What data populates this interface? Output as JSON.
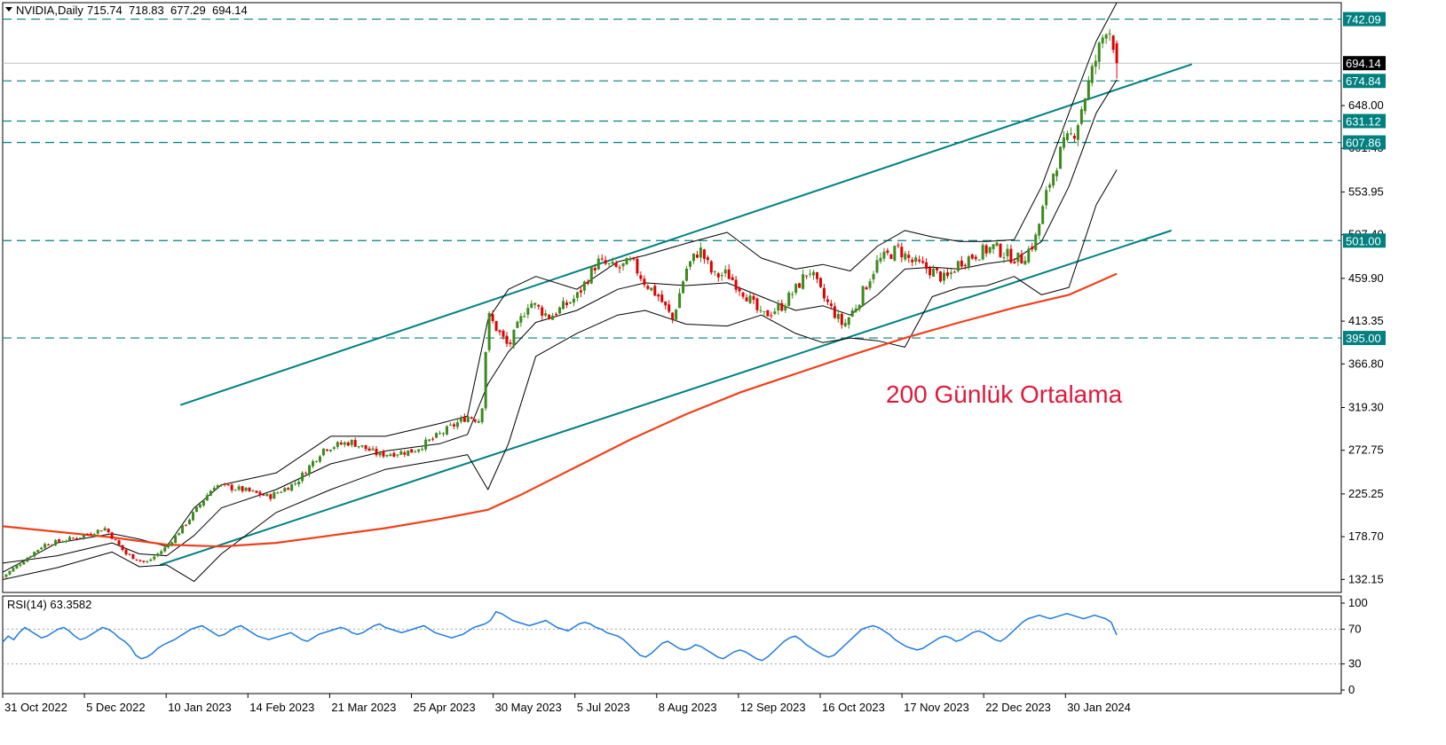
{
  "header": {
    "symbol_line": "NVIDIA,Daily",
    "ohlc": [
      "715.74",
      "718.83",
      "677.29",
      "694.14"
    ]
  },
  "rsi_panel": {
    "label": "RSI(14) 63.3582",
    "scale": [
      "100",
      "70",
      "30",
      "0"
    ],
    "levels": [
      70,
      30
    ],
    "series": [
      55,
      62,
      58,
      66,
      72,
      68,
      64,
      60,
      62,
      66,
      70,
      72,
      68,
      62,
      58,
      60,
      64,
      68,
      72,
      70,
      66,
      60,
      56,
      50,
      40,
      36,
      38,
      42,
      48,
      52,
      55,
      58,
      62,
      66,
      70,
      72,
      74,
      70,
      66,
      62,
      64,
      68,
      72,
      74,
      70,
      66,
      62,
      60,
      58,
      60,
      62,
      64,
      66,
      62,
      58,
      56,
      60,
      64,
      66,
      68,
      70,
      72,
      70,
      66,
      64,
      66,
      70,
      74,
      76,
      72,
      70,
      68,
      66,
      68,
      70,
      72,
      74,
      70,
      66,
      64,
      62,
      60,
      62,
      64,
      68,
      72,
      74,
      76,
      80,
      90,
      88,
      84,
      80,
      78,
      76,
      74,
      76,
      78,
      80,
      76,
      72,
      70,
      68,
      72,
      76,
      78,
      76,
      72,
      70,
      66,
      64,
      62,
      58,
      52,
      46,
      40,
      38,
      42,
      48,
      54,
      56,
      52,
      48,
      46,
      48,
      52,
      50,
      46,
      42,
      38,
      36,
      40,
      44,
      46,
      44,
      40,
      36,
      34,
      38,
      44,
      50,
      56,
      60,
      62,
      58,
      52,
      48,
      44,
      40,
      38,
      40,
      46,
      52,
      58,
      64,
      70,
      72,
      74,
      72,
      68,
      64,
      58,
      54,
      50,
      48,
      46,
      48,
      52,
      56,
      60,
      62,
      60,
      56,
      58,
      62,
      66,
      68,
      66,
      62,
      58,
      56,
      60,
      66,
      72,
      78,
      82,
      84,
      86,
      84,
      82,
      84,
      86,
      88,
      86,
      84,
      82,
      84,
      86,
      84,
      82,
      78,
      63.36
    ],
    "color": "#1e7be0"
  },
  "annotation": {
    "text": "200 Günlük Ortalama",
    "color": "#e0193b"
  },
  "colors": {
    "up": "#3c8a1c",
    "down": "#e00000",
    "ma200": "#f0401a",
    "channel": "#00807f",
    "level": "#00807f",
    "bands": "#000000",
    "price_tag": "#000000"
  },
  "chart_data": {
    "type": "candlestick",
    "symbol": "NVIDIA",
    "timeframe": "Daily",
    "last": {
      "open": 715.74,
      "high": 718.83,
      "low": 677.29,
      "close": 694.14
    },
    "x_tick_labels": [
      "31 Oct 2022",
      "5 Dec 2022",
      "10 Jan 2023",
      "14 Feb 2023",
      "21 Mar 2023",
      "25 Apr 2023",
      "30 May 2023",
      "5 Jul 2023",
      "8 Aug 2023",
      "12 Sep 2023",
      "16 Oct 2023",
      "17 Nov 2023",
      "22 Dec 2023",
      "30 Jan 2024"
    ],
    "y_tick_labels": [
      "132.15",
      "178.70",
      "225.25",
      "272.75",
      "319.30",
      "366.80",
      "413.35",
      "459.90",
      "507.40",
      "553.95",
      "601.45",
      "648.00"
    ],
    "ylim": [
      118,
      760
    ],
    "price_levels": [
      {
        "value": 742.09,
        "label": "742.09"
      },
      {
        "value": 674.84,
        "label": "674.84"
      },
      {
        "value": 631.12,
        "label": "631.12"
      },
      {
        "value": 607.86,
        "label": "607.86"
      },
      {
        "value": 501.0,
        "label": "501.00"
      },
      {
        "value": 395.0,
        "label": "395.00"
      }
    ],
    "current_price": {
      "value": 694.14,
      "label": "694.14"
    },
    "channel": {
      "upper": [
        {
          "t": 0.13,
          "v": 322
        },
        {
          "t": 0.87,
          "v": 693
        }
      ],
      "lower": [
        {
          "t": 0.115,
          "v": 148
        },
        {
          "t": 0.855,
          "v": 512
        }
      ]
    },
    "close_path": [
      [
        0,
        135
      ],
      [
        0.03,
        170
      ],
      [
        0.055,
        178
      ],
      [
        0.075,
        188
      ],
      [
        0.09,
        160
      ],
      [
        0.105,
        150
      ],
      [
        0.12,
        168
      ],
      [
        0.135,
        195
      ],
      [
        0.155,
        235
      ],
      [
        0.175,
        230
      ],
      [
        0.195,
        222
      ],
      [
        0.215,
        238
      ],
      [
        0.235,
        275
      ],
      [
        0.255,
        282
      ],
      [
        0.275,
        268
      ],
      [
        0.3,
        272
      ],
      [
        0.32,
        290
      ],
      [
        0.34,
        310
      ],
      [
        0.35,
        305
      ],
      [
        0.355,
        420
      ],
      [
        0.37,
        385
      ],
      [
        0.385,
        435
      ],
      [
        0.4,
        418
      ],
      [
        0.42,
        440
      ],
      [
        0.435,
        478
      ],
      [
        0.45,
        470
      ],
      [
        0.46,
        478
      ],
      [
        0.47,
        455
      ],
      [
        0.48,
        440
      ],
      [
        0.49,
        415
      ],
      [
        0.5,
        470
      ],
      [
        0.51,
        492
      ],
      [
        0.52,
        462
      ],
      [
        0.53,
        465
      ],
      [
        0.545,
        440
      ],
      [
        0.555,
        418
      ],
      [
        0.57,
        430
      ],
      [
        0.58,
        448
      ],
      [
        0.59,
        470
      ],
      [
        0.6,
        440
      ],
      [
        0.615,
        408
      ],
      [
        0.625,
        432
      ],
      [
        0.64,
        478
      ],
      [
        0.655,
        492
      ],
      [
        0.665,
        478
      ],
      [
        0.68,
        468
      ],
      [
        0.69,
        458
      ],
      [
        0.7,
        478
      ],
      [
        0.715,
        488
      ],
      [
        0.725,
        494
      ],
      [
        0.735,
        485
      ],
      [
        0.745,
        480
      ],
      [
        0.755,
        500
      ],
      [
        0.765,
        560
      ],
      [
        0.775,
        602
      ],
      [
        0.785,
        622
      ],
      [
        0.79,
        650
      ],
      [
        0.8,
        700
      ],
      [
        0.808,
        738
      ],
      [
        0.812,
        720
      ],
      [
        0.815,
        694.14
      ]
    ],
    "bollinger": {
      "middle": [
        [
          0,
          150
        ],
        [
          0.04,
          158
        ],
        [
          0.08,
          172
        ],
        [
          0.1,
          160
        ],
        [
          0.12,
          158
        ],
        [
          0.14,
          180
        ],
        [
          0.16,
          210
        ],
        [
          0.2,
          230
        ],
        [
          0.24,
          258
        ],
        [
          0.28,
          272
        ],
        [
          0.32,
          280
        ],
        [
          0.34,
          290
        ],
        [
          0.355,
          345
        ],
        [
          0.37,
          380
        ],
        [
          0.39,
          412
        ],
        [
          0.42,
          425
        ],
        [
          0.45,
          448
        ],
        [
          0.47,
          455
        ],
        [
          0.5,
          452
        ],
        [
          0.53,
          455
        ],
        [
          0.555,
          440
        ],
        [
          0.58,
          425
        ],
        [
          0.6,
          430
        ],
        [
          0.62,
          420
        ],
        [
          0.64,
          442
        ],
        [
          0.66,
          470
        ],
        [
          0.68,
          472
        ],
        [
          0.7,
          470
        ],
        [
          0.72,
          476
        ],
        [
          0.74,
          480
        ],
        [
          0.76,
          500
        ],
        [
          0.78,
          560
        ],
        [
          0.8,
          640
        ],
        [
          0.815,
          676
        ]
      ],
      "upper": [
        [
          0,
          140
        ],
        [
          0.04,
          172
        ],
        [
          0.08,
          182
        ],
        [
          0.1,
          176
        ],
        [
          0.12,
          168
        ],
        [
          0.14,
          210
        ],
        [
          0.16,
          235
        ],
        [
          0.2,
          248
        ],
        [
          0.24,
          288
        ],
        [
          0.28,
          288
        ],
        [
          0.32,
          302
        ],
        [
          0.34,
          310
        ],
        [
          0.355,
          415
        ],
        [
          0.37,
          448
        ],
        [
          0.39,
          462
        ],
        [
          0.42,
          448
        ],
        [
          0.45,
          478
        ],
        [
          0.47,
          485
        ],
        [
          0.5,
          498
        ],
        [
          0.53,
          510
        ],
        [
          0.555,
          482
        ],
        [
          0.58,
          470
        ],
        [
          0.6,
          475
        ],
        [
          0.62,
          468
        ],
        [
          0.64,
          495
        ],
        [
          0.66,
          512
        ],
        [
          0.68,
          505
        ],
        [
          0.7,
          500
        ],
        [
          0.72,
          500
        ],
        [
          0.74,
          502
        ],
        [
          0.76,
          560
        ],
        [
          0.78,
          640
        ],
        [
          0.8,
          718
        ],
        [
          0.815,
          760
        ]
      ],
      "lower": [
        [
          0,
          132
        ],
        [
          0.04,
          145
        ],
        [
          0.08,
          162
        ],
        [
          0.1,
          146
        ],
        [
          0.12,
          148
        ],
        [
          0.14,
          130
        ],
        [
          0.16,
          160
        ],
        [
          0.2,
          205
        ],
        [
          0.24,
          230
        ],
        [
          0.28,
          252
        ],
        [
          0.32,
          262
        ],
        [
          0.34,
          268
        ],
        [
          0.355,
          230
        ],
        [
          0.37,
          280
        ],
        [
          0.39,
          375
        ],
        [
          0.42,
          400
        ],
        [
          0.45,
          420
        ],
        [
          0.47,
          425
        ],
        [
          0.5,
          410
        ],
        [
          0.53,
          408
        ],
        [
          0.555,
          420
        ],
        [
          0.58,
          400
        ],
        [
          0.6,
          390
        ],
        [
          0.62,
          395
        ],
        [
          0.64,
          392
        ],
        [
          0.66,
          385
        ],
        [
          0.68,
          440
        ],
        [
          0.7,
          450
        ],
        [
          0.72,
          452
        ],
        [
          0.74,
          462
        ],
        [
          0.76,
          442
        ],
        [
          0.78,
          450
        ],
        [
          0.8,
          540
        ],
        [
          0.815,
          578
        ]
      ]
    },
    "ma200": [
      [
        0,
        190
      ],
      [
        0.04,
        184
      ],
      [
        0.08,
        178
      ],
      [
        0.12,
        170
      ],
      [
        0.16,
        168
      ],
      [
        0.2,
        172
      ],
      [
        0.24,
        180
      ],
      [
        0.28,
        188
      ],
      [
        0.32,
        198
      ],
      [
        0.355,
        208
      ],
      [
        0.38,
        225
      ],
      [
        0.42,
        255
      ],
      [
        0.46,
        285
      ],
      [
        0.5,
        312
      ],
      [
        0.54,
        336
      ],
      [
        0.58,
        356
      ],
      [
        0.62,
        376
      ],
      [
        0.66,
        395
      ],
      [
        0.7,
        412
      ],
      [
        0.74,
        428
      ],
      [
        0.78,
        442
      ],
      [
        0.8,
        455
      ],
      [
        0.815,
        465
      ]
    ]
  }
}
